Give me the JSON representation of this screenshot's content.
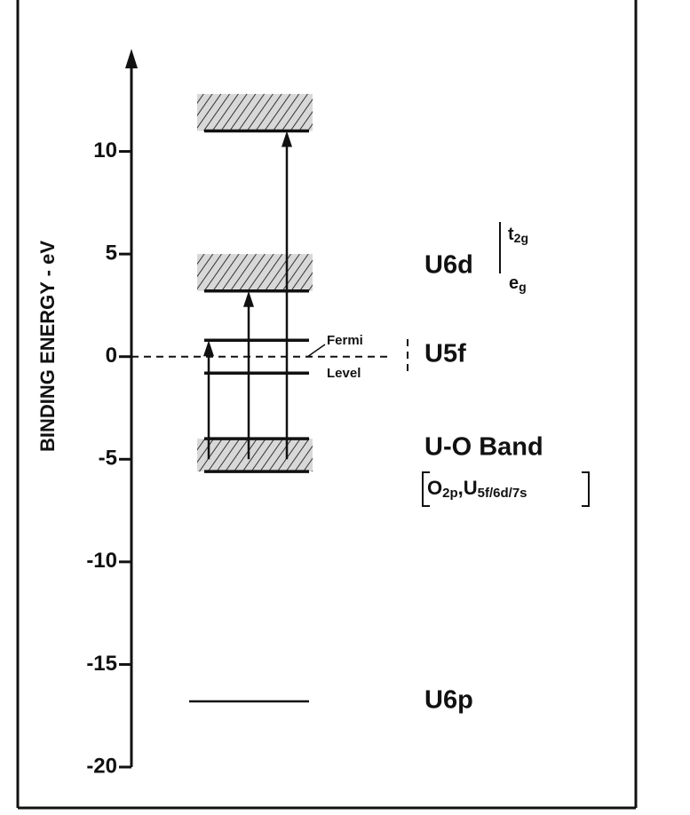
{
  "chart_data": {
    "type": "energy-levels",
    "y_label": "BINDING ENERGY - eV",
    "ylim": [
      -20,
      15
    ],
    "yticks": [
      10,
      5,
      0,
      -5,
      -10,
      -15,
      -20
    ],
    "bands": [
      {
        "from": 11,
        "to": 12.8
      },
      {
        "from": 3.2,
        "to": 5
      },
      {
        "from": -5.6,
        "to": -4
      }
    ],
    "levels": [
      11,
      3.2,
      0.8,
      -0.8,
      -4,
      -5.6,
      -16.8
    ],
    "fermi": 0,
    "transitions": [
      {
        "from": -5,
        "to": 0.8
      },
      {
        "from": -5,
        "to": 3.2
      },
      {
        "from": -5,
        "to": 11
      }
    ],
    "annotations": {
      "u6d": "U6d",
      "t2g": {
        "text": "t",
        "sub": "2g"
      },
      "eg": {
        "text": "e",
        "sub": "g"
      },
      "u5f": "U5f",
      "fermi": "Fermi",
      "level": "Level",
      "uo_band": "U-O Band",
      "uo_detail": {
        "o": "O",
        "o_sub": "2p",
        "u": ",U",
        "u_sub": "5f/6d/7s"
      },
      "u6p": "U6p"
    }
  }
}
